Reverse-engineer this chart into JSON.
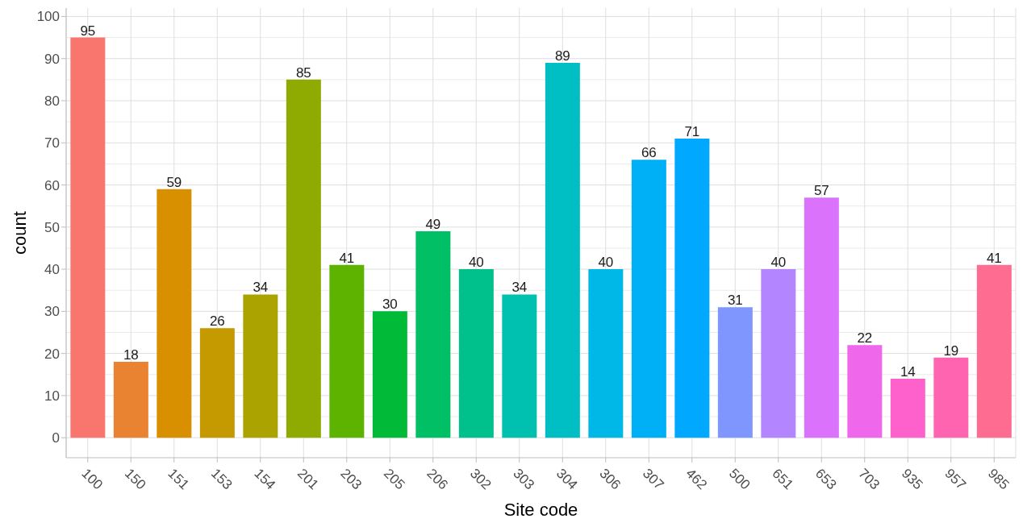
{
  "chart_data": {
    "type": "bar",
    "xlabel": "Site code",
    "ylabel": "count",
    "categories": [
      "100",
      "150",
      "151",
      "153",
      "154",
      "201",
      "203",
      "205",
      "206",
      "302",
      "303",
      "304",
      "306",
      "307",
      "462",
      "500",
      "651",
      "653",
      "703",
      "935",
      "957",
      "985"
    ],
    "values": [
      95,
      18,
      59,
      26,
      34,
      85,
      41,
      30,
      49,
      40,
      34,
      89,
      40,
      66,
      71,
      31,
      40,
      57,
      22,
      14,
      19,
      41
    ],
    "colors": [
      "#f8766d",
      "#ea8331",
      "#d89000",
      "#c49a00",
      "#aba300",
      "#8faa00",
      "#5eb300",
      "#00ba38",
      "#00bf64",
      "#00c08b",
      "#00c0af",
      "#00bfc4",
      "#00b8e7",
      "#00b0f6",
      "#00a9ff",
      "#7f96ff",
      "#b385ff",
      "#db72fb",
      "#ef67eb",
      "#ff61cc",
      "#ff64b0",
      "#ff6c91"
    ],
    "ylim": [
      -4.75,
      102
    ],
    "yticks": [
      0,
      10,
      20,
      30,
      40,
      50,
      60,
      70,
      80,
      90,
      100
    ],
    "grid": true,
    "data_labels": true
  }
}
